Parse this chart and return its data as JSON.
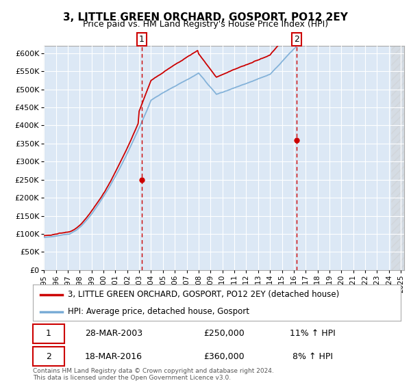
{
  "title": "3, LITTLE GREEN ORCHARD, GOSPORT, PO12 2EY",
  "subtitle": "Price paid vs. HM Land Registry's House Price Index (HPI)",
  "xlim_start": 1995.0,
  "xlim_end": 2025.3,
  "ylim_bottom": 0,
  "ylim_top": 620000,
  "yticks": [
    0,
    50000,
    100000,
    150000,
    200000,
    250000,
    300000,
    350000,
    400000,
    450000,
    500000,
    550000,
    600000
  ],
  "xtick_years": [
    1995,
    1996,
    1997,
    1998,
    1999,
    2000,
    2001,
    2002,
    2003,
    2004,
    2005,
    2006,
    2007,
    2008,
    2009,
    2010,
    2011,
    2012,
    2013,
    2014,
    2015,
    2016,
    2017,
    2018,
    2019,
    2020,
    2021,
    2022,
    2023,
    2024,
    2025
  ],
  "sale1_year": 2003.22,
  "sale1_price": 250000,
  "sale1_label": "1",
  "sale1_date": "28-MAR-2003",
  "sale1_hpi": "11% ↑ HPI",
  "sale2_year": 2016.22,
  "sale2_price": 360000,
  "sale2_label": "2",
  "sale2_date": "18-MAR-2016",
  "sale2_hpi": "8% ↑ HPI",
  "hpi_color": "#7aacd6",
  "price_color": "#cc0000",
  "vline_color": "#cc0000",
  "bg_color": "#dce8f5",
  "grid_color": "#ffffff",
  "hatch_color": "#cccccc",
  "legend_label_price": "3, LITTLE GREEN ORCHARD, GOSPORT, PO12 2EY (detached house)",
  "legend_label_hpi": "HPI: Average price, detached house, Gosport",
  "footer": "Contains HM Land Registry data © Crown copyright and database right 2024.\nThis data is licensed under the Open Government Licence v3.0."
}
